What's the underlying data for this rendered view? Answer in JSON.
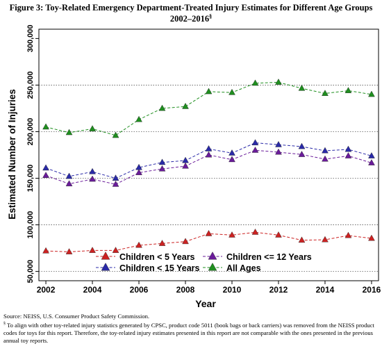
{
  "title_line1": "Figure 3: Toy-Related Emergency Department-Treated Injury Estimates for Different Age Groups",
  "title_line2": "2002–2016",
  "title_mark": "§",
  "source": "Source:  NEISS, U.S. Consumer Product Safety Commission.",
  "footnote_mark": "§",
  "footnote": "To align with other toy-related injury statistics generated by CPSC, product code 5011 (book bags or back carriers) was removed from the NEISS product codes for toys for this report. Therefore, the toy-related injury estimates presented in this report are not comparable with the ones presented in the previous annual toy reports.",
  "chart_data": {
    "type": "line",
    "xlabel": "Year",
    "ylabel": "Estimated Number of Injuries",
    "x": [
      2002,
      2003,
      2004,
      2005,
      2006,
      2007,
      2008,
      2009,
      2010,
      2011,
      2012,
      2013,
      2014,
      2015,
      2016
    ],
    "xticks": [
      2002,
      2004,
      2006,
      2008,
      2010,
      2012,
      2014,
      2016
    ],
    "xlim": [
      2001.7,
      2016.3
    ],
    "yticks": [
      50000,
      100000,
      150000,
      200000,
      250000,
      300000
    ],
    "ytick_labels": [
      "50,000",
      "100,000",
      "150,000",
      "200,000",
      "250,000",
      "300,000"
    ],
    "ylim": [
      40000,
      310000
    ],
    "gridlines": [
      50000,
      100000,
      150000,
      200000,
      250000
    ],
    "legend_position": "bottom",
    "series": [
      {
        "name": "Children < 5 Years",
        "color": "#cc2222",
        "values": [
          72000,
          71000,
          72500,
          72500,
          78000,
          80000,
          82000,
          90500,
          89000,
          92000,
          89000,
          83500,
          84000,
          88500,
          85500
        ]
      },
      {
        "name": "Children <= 12 Years",
        "color": "#6a1b9a",
        "values": [
          153000,
          144000,
          149000,
          143500,
          156000,
          160000,
          163000,
          175000,
          170000,
          180000,
          178000,
          175500,
          170500,
          174000,
          166500
        ]
      },
      {
        "name": "Children < 15 Years",
        "color": "#2a2aa8",
        "values": [
          161000,
          152000,
          157000,
          150000,
          161500,
          167000,
          169000,
          181500,
          177000,
          188000,
          186000,
          184000,
          179500,
          181000,
          174000
        ]
      },
      {
        "name": "All Ages",
        "color": "#1f8f1f",
        "values": [
          205000,
          199000,
          203000,
          196000,
          213000,
          225000,
          227000,
          243000,
          242000,
          252000,
          253000,
          246500,
          241000,
          244000,
          240000
        ]
      }
    ]
  }
}
